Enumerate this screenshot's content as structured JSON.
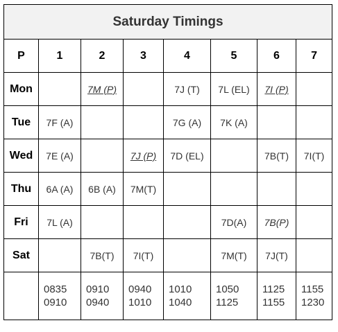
{
  "title": "Saturday Timings",
  "header": [
    "P",
    "1",
    "2",
    "3",
    "4",
    "5",
    "6",
    "7"
  ],
  "rows": [
    {
      "day": "Mon",
      "cells": [
        "",
        "7M (P)",
        "",
        "7J (T)",
        "7L (EL)",
        "7I (P)",
        ""
      ]
    },
    {
      "day": "Tue",
      "cells": [
        "7F (A)",
        "",
        "",
        "7G (A)",
        "7K (A)",
        "",
        ""
      ]
    },
    {
      "day": "Wed",
      "cells": [
        "7E (A)",
        "",
        "7J (P)",
        "7D (EL)",
        "",
        "7B(T)",
        "7I(T)"
      ]
    },
    {
      "day": "Thu",
      "cells": [
        "6A (A)",
        "6B (A)",
        "7M(T)",
        "",
        "",
        "",
        ""
      ]
    },
    {
      "day": "Fri",
      "cells": [
        "7L (A)",
        "",
        "",
        "",
        "7D(A)",
        "7B(P)",
        ""
      ]
    },
    {
      "day": "Sat",
      "cells": [
        "",
        "7B(T)",
        "7I(T)",
        "",
        "7M(T)",
        "7J(T)",
        ""
      ]
    }
  ],
  "times": [
    {
      "start": "0835",
      "end": "0910"
    },
    {
      "start": "0910",
      "end": "0940"
    },
    {
      "start": "0940",
      "end": "1010"
    },
    {
      "start": "1010",
      "end": "1040"
    },
    {
      "start": "1050",
      "end": "1125"
    },
    {
      "start": "1125",
      "end": "1155"
    },
    {
      "start": "1155",
      "end": "1230"
    }
  ]
}
